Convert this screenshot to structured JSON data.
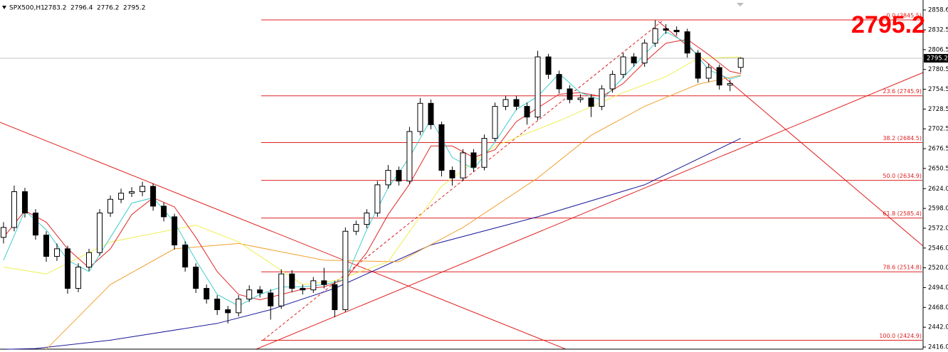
{
  "chart_data": {
    "type": "candlestick",
    "symbol": "SPX500,H1",
    "header_ohlc": [
      2783.2,
      2796.4,
      2776.2,
      2795.2
    ],
    "last_price": 2795.2,
    "xlim": [
      -0.33,
      86.07
    ],
    "ylim": [
      2413.2,
      2871.7
    ],
    "yticks": [
      2858.6,
      2832.5,
      2806.5,
      2780.5,
      2754.5,
      2728.5,
      2702.5,
      2676.5,
      2650.5,
      {
        "value": 2624,
        "label": "2624.0"
      },
      {
        "value": 2598,
        "label": "2598.0"
      },
      {
        "value": 2572,
        "label": "2572.0"
      },
      {
        "value": 2546,
        "label": "2546.0"
      },
      {
        "value": 2520,
        "label": "2520.0"
      },
      {
        "value": 2494,
        "label": "2494.0"
      },
      {
        "value": 2468,
        "label": "2468.0"
      },
      {
        "value": 2442,
        "label": "2442.0"
      },
      {
        "value": 2416,
        "label": "2416.0"
      }
    ],
    "open": [
      2560,
      2573,
      2620,
      2592,
      2563,
      2535,
      2545,
      2493,
      2521,
      2540,
      2592,
      2610,
      2618,
      2620,
      2627,
      2601,
      2587,
      2550,
      2521,
      2493,
      2479,
      2465,
      2461,
      2479,
      2491,
      2487,
      2470,
      2512,
      2493,
      2491,
      2503,
      2498,
      2465,
      2568,
      2577,
      2592,
      2629,
      2648,
      2634,
      2699,
      2736,
      2708,
      2648,
      2638,
      2671,
      2652,
      2690,
      2732,
      2741,
      2732,
      2718,
      2797,
      2774,
      2755,
      2741,
      2743,
      2732,
      2755,
      2774,
      2797,
      2789,
      2815,
      2834,
      2832,
      2830,
      2802,
      2769,
      2783,
      2760,
      2783.2
    ],
    "high": [
      2580,
      2628,
      2625,
      2597,
      2568,
      2552,
      2549,
      2526,
      2545,
      2597,
      2615,
      2624,
      2626,
      2633,
      2631,
      2606,
      2591,
      2555,
      2526,
      2498,
      2484,
      2470,
      2484,
      2497,
      2496,
      2492,
      2518,
      2517,
      2498,
      2508,
      2520,
      2503,
      2573,
      2582,
      2597,
      2634,
      2655,
      2653,
      2705,
      2743,
      2741,
      2712,
      2653,
      2676,
      2676,
      2695,
      2737,
      2746,
      2746,
      2737,
      2805,
      2801,
      2779,
      2760,
      2748,
      2748,
      2760,
      2779,
      2802,
      2802,
      2820,
      2845,
      2840,
      2837,
      2834,
      2806,
      2788,
      2787,
      2767,
      2796.4
    ],
    "low": [
      2552,
      2568,
      2586,
      2557,
      2528,
      2529,
      2486,
      2488,
      2516,
      2536,
      2587,
      2605,
      2613,
      2614,
      2595,
      2581,
      2544,
      2515,
      2487,
      2473,
      2458,
      2447,
      2456,
      2475,
      2481,
      2452,
      2466,
      2488,
      2485,
      2487,
      2493,
      2455,
      2462,
      2563,
      2572,
      2587,
      2624,
      2628,
      2630,
      2694,
      2702,
      2640,
      2628,
      2634,
      2646,
      2648,
      2686,
      2727,
      2727,
      2708,
      2714,
      2768,
      2749,
      2736,
      2737,
      2718,
      2727,
      2750,
      2769,
      2784,
      2784,
      2810,
      2827,
      2825,
      2796,
      2763,
      2764,
      2754,
      2752,
      2776.2
    ],
    "close": [
      2573,
      2620,
      2592,
      2563,
      2535,
      2545,
      2493,
      2521,
      2540,
      2592,
      2610,
      2618,
      2620,
      2627,
      2601,
      2587,
      2550,
      2521,
      2493,
      2479,
      2465,
      2461,
      2479,
      2491,
      2487,
      2470,
      2512,
      2493,
      2491,
      2503,
      2498,
      2465,
      2568,
      2577,
      2592,
      2629,
      2648,
      2634,
      2699,
      2736,
      2708,
      2648,
      2638,
      2671,
      2652,
      2690,
      2732,
      2741,
      2732,
      2718,
      2797,
      2774,
      2755,
      2741,
      2743,
      2732,
      2755,
      2774,
      2797,
      2789,
      2815,
      2834,
      2832,
      2830,
      2802,
      2769,
      2783,
      2760,
      2762,
      2795.2
    ],
    "series": [
      {
        "color": "#1c1c9a",
        "x": [
          0,
          3,
          10,
          20,
          25,
          31,
          40,
          50,
          60,
          69
        ],
        "values": [
          2413,
          2414,
          2425,
          2447,
          2465,
          2493,
          2550,
          2587,
          2629,
          2690
        ]
      },
      {
        "color": "#f0a030",
        "x": [
          4,
          10,
          16,
          22,
          30,
          37,
          43,
          50,
          55,
          60,
          65,
          69
        ],
        "values": [
          2413,
          2498,
          2545,
          2552,
          2530,
          2528,
          2573,
          2638,
          2694,
          2732,
          2761,
          2773
        ]
      },
      {
        "color": "#eeee55",
        "x": [
          0,
          4,
          10,
          18,
          22,
          28,
          31,
          36,
          41,
          46,
          52,
          58,
          62,
          65,
          69
        ],
        "values": [
          2521,
          2512,
          2554,
          2576,
          2554,
          2498,
          2503,
          2528,
          2627,
          2680,
          2713,
          2750,
          2771,
          2795,
          2797
        ]
      },
      {
        "color": "#e02828",
        "x": [
          0,
          2,
          4,
          6,
          8,
          10,
          12,
          14,
          16,
          18,
          20,
          22,
          24,
          26,
          28,
          30,
          32,
          34,
          36,
          38,
          40,
          42,
          44,
          46,
          48,
          50,
          52,
          54,
          56,
          58,
          60,
          62,
          64,
          66,
          68,
          69
        ],
        "values": [
          2560,
          2595,
          2580,
          2545,
          2520,
          2545,
          2590,
          2612,
          2600,
          2560,
          2515,
          2485,
          2478,
          2485,
          2492,
          2495,
          2505,
          2540,
          2590,
          2630,
          2680,
          2680,
          2665,
          2675,
          2712,
          2730,
          2748,
          2750,
          2745,
          2762,
          2790,
          2815,
          2820,
          2800,
          2778,
          2775
        ]
      },
      {
        "color": "#40cccc",
        "x": [
          0,
          2,
          4,
          6,
          8,
          10,
          12,
          14,
          16,
          18,
          20,
          22,
          24,
          26,
          28,
          30,
          32,
          34,
          36,
          38,
          40,
          42,
          44,
          46,
          48,
          50,
          52,
          54,
          56,
          58,
          60,
          62,
          64,
          66,
          68,
          69
        ],
        "values": [
          2530,
          2595,
          2570,
          2530,
          2515,
          2560,
          2605,
          2612,
          2580,
          2530,
          2485,
          2470,
          2485,
          2495,
          2495,
          2498,
          2505,
          2570,
          2625,
          2665,
          2715,
          2665,
          2650,
          2685,
          2728,
          2745,
          2775,
          2750,
          2740,
          2770,
          2800,
          2830,
          2815,
          2780,
          2768,
          2772
        ]
      }
    ],
    "fib_levels": [
      {
        "value": 2845.5,
        "label": "0.0 (2845.5)"
      },
      {
        "value": 2745.9,
        "label": "23.6 (2745.9)"
      },
      {
        "value": 2684.5,
        "label": "38.2 (2684.5)"
      },
      {
        "value": 2634.9,
        "label": "50.0 (2634.9)"
      },
      {
        "value": 2585.4,
        "label": "61.8 (2585.4)"
      },
      {
        "value": 2514.8,
        "label": "78.6 (2514.8)"
      },
      {
        "value": 2424.9,
        "label": "100.0 (2424.9)"
      }
    ]
  }
}
